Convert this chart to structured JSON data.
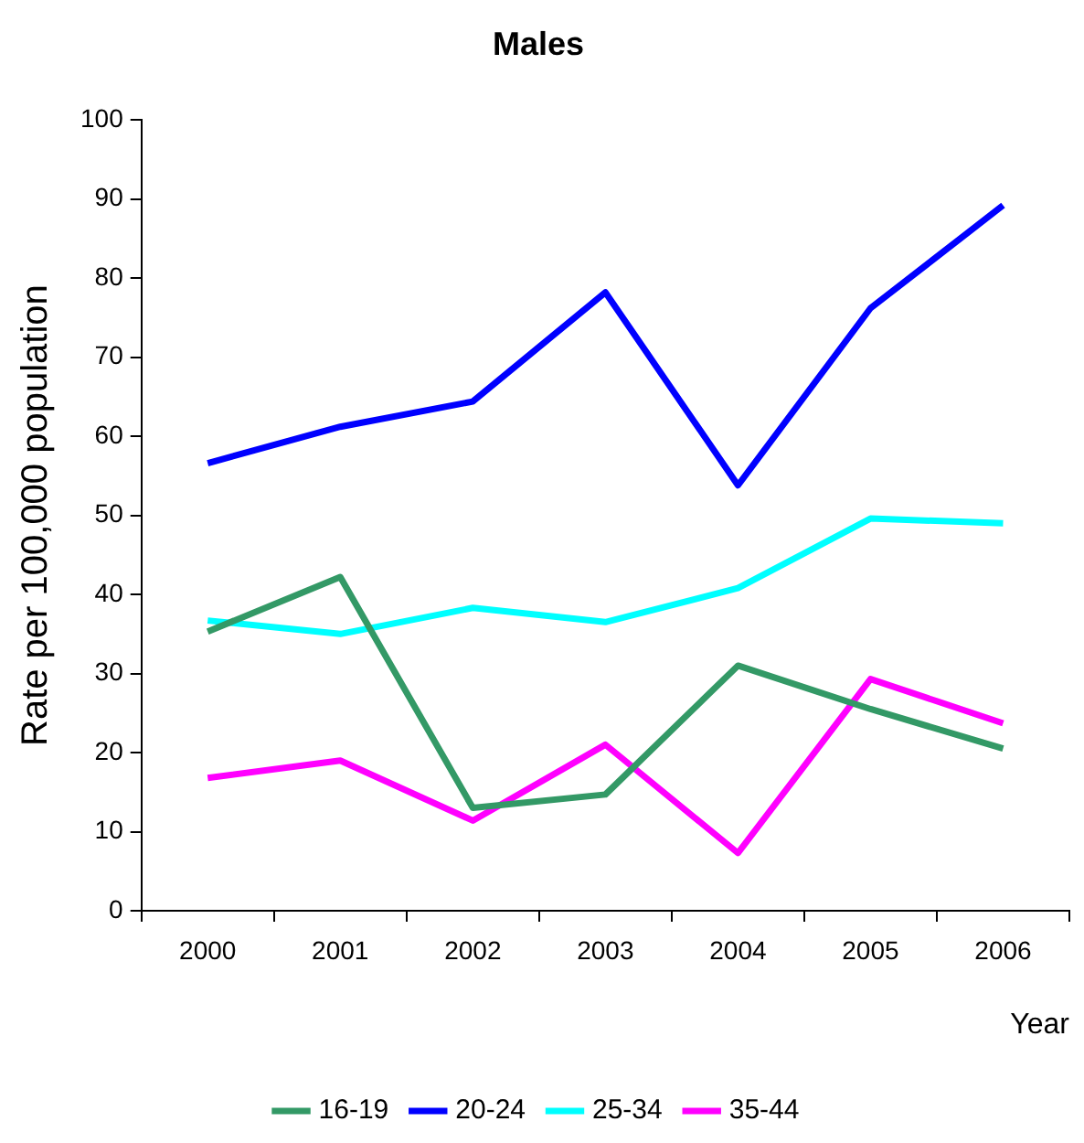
{
  "chart_data": {
    "type": "line",
    "title": "Males",
    "xlabel": "Year",
    "ylabel": "Rate per 100,000 population",
    "categories": [
      "2000",
      "2001",
      "2002",
      "2003",
      "2004",
      "2005",
      "2006"
    ],
    "ylim": [
      0,
      100
    ],
    "yticks": [
      0,
      10,
      20,
      30,
      40,
      50,
      60,
      70,
      80,
      90,
      100
    ],
    "grid": false,
    "legend": "bottom",
    "marker": "none",
    "line_style": "solid",
    "series": [
      {
        "name": "16-19",
        "color": "#339966",
        "values": [
          35.3,
          42.2,
          13,
          14.7,
          31,
          25.5,
          20.5
        ]
      },
      {
        "name": "20-24",
        "color": "#0000ff",
        "values": [
          56.6,
          61.2,
          64.4,
          78.2,
          53.8,
          76.2,
          89.2
        ]
      },
      {
        "name": "25-34",
        "color": "#00ffff",
        "values": [
          36.7,
          35,
          38.3,
          36.5,
          40.8,
          49.6,
          49
        ]
      },
      {
        "name": "35-44",
        "color": "#ff00ff",
        "values": [
          16.8,
          19,
          11.4,
          21,
          7.3,
          29.3,
          23.7
        ]
      }
    ]
  }
}
